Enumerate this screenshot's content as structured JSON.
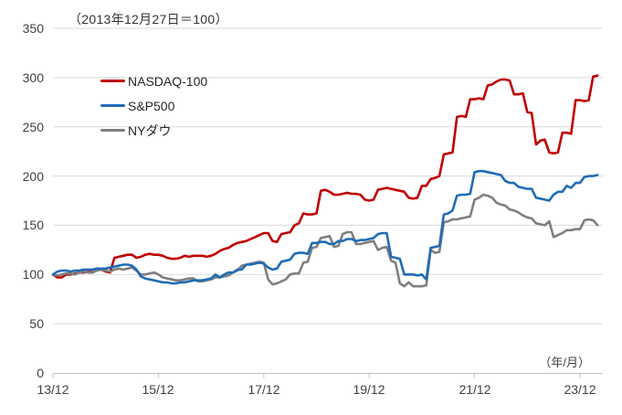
{
  "chart_data": {
    "type": "line",
    "title": "（2013年12月27日＝100）",
    "baseline_note": "2013-12-27 = 100",
    "x_axis": {
      "label": "（年/月）",
      "tick_labels": [
        "13/12",
        "15/12",
        "17/12",
        "19/12",
        "21/12",
        "23/12"
      ],
      "tick_months": [
        0,
        24,
        48,
        72,
        96,
        120
      ],
      "unit": "monthly points, month 0 = 2013/12"
    },
    "y_axis": {
      "tick_labels": [
        "0",
        "50",
        "100",
        "150",
        "200",
        "250",
        "300",
        "350"
      ],
      "ticks": [
        0,
        50,
        100,
        150,
        200,
        250,
        300,
        350
      ],
      "range": [
        0,
        350
      ],
      "grid": true
    },
    "legend_position": "top-left-inside",
    "series": [
      {
        "name": "NASDAQ-100",
        "color": "#c00000",
        "values": [
          100,
          97,
          97,
          100,
          100,
          101,
          102,
          102,
          103,
          105,
          105,
          105,
          103,
          102,
          117,
          118,
          119,
          120,
          120,
          117,
          118,
          120,
          121,
          120,
          120,
          119,
          117,
          116,
          116,
          117,
          119,
          118,
          119,
          119,
          119,
          118,
          119,
          121,
          124,
          126,
          127,
          130,
          132,
          133,
          134,
          136,
          138,
          140,
          142,
          142,
          134,
          133,
          141,
          142,
          143,
          150,
          152,
          162,
          161,
          161,
          162,
          185,
          186,
          184,
          181,
          181,
          182,
          183,
          182,
          182,
          181,
          176,
          175,
          176,
          186,
          187,
          188,
          187,
          186,
          185,
          184,
          178,
          177,
          178,
          190,
          190,
          197,
          198,
          200,
          222,
          223,
          224,
          260,
          261,
          260,
          278,
          278,
          279,
          278,
          292,
          293,
          296,
          298,
          298,
          297,
          283,
          283,
          284,
          265,
          264,
          232,
          236,
          237,
          224,
          223,
          224,
          244,
          244,
          243,
          277,
          277,
          276,
          277,
          301,
          302
        ]
      },
      {
        "name": "S&P500",
        "color": "#1f6cb5",
        "values": [
          100,
          103,
          104,
          104,
          103,
          104,
          104,
          105,
          105,
          105,
          106,
          106,
          106,
          107,
          108,
          109,
          110,
          110,
          109,
          105,
          98,
          96,
          95,
          94,
          93,
          92,
          92,
          91,
          91,
          92,
          92,
          93,
          94,
          94,
          94,
          95,
          96,
          100,
          97,
          100,
          102,
          102,
          105,
          105,
          110,
          110,
          111,
          112,
          111,
          107,
          105,
          106,
          113,
          114,
          115,
          121,
          122,
          122,
          121,
          132,
          132,
          133,
          133,
          131,
          131,
          134,
          134,
          136,
          136,
          134,
          135,
          135,
          136,
          137,
          141,
          142,
          142,
          118,
          117,
          116,
          100,
          100,
          100,
          99,
          100,
          95,
          127,
          128,
          129,
          161,
          162,
          165,
          180,
          181,
          181,
          182,
          204,
          205,
          205,
          204,
          203,
          202,
          201,
          195,
          193,
          193,
          189,
          188,
          187,
          187,
          178,
          177,
          176,
          175,
          181,
          184,
          184,
          190,
          188,
          193,
          193,
          199,
          200,
          200,
          201
        ]
      },
      {
        "name": "NYダウ",
        "color": "#7f7f7f",
        "values": [
          100,
          99,
          100,
          101,
          101,
          100,
          102,
          103,
          102,
          102,
          104,
          105,
          104,
          103,
          105,
          106,
          105,
          106,
          107,
          104,
          100,
          100,
          101,
          102,
          100,
          97,
          96,
          95,
          94,
          94,
          95,
          96,
          96,
          93,
          93,
          94,
          95,
          97,
          97,
          98,
          99,
          102,
          104,
          109,
          110,
          111,
          112,
          113,
          112,
          95,
          90,
          91,
          93,
          95,
          100,
          101,
          101,
          112,
          113,
          127,
          128,
          137,
          138,
          139,
          128,
          129,
          141,
          143,
          143,
          131,
          131,
          132,
          133,
          134,
          125,
          127,
          128,
          114,
          112,
          91,
          88,
          92,
          88,
          88,
          88,
          89,
          125,
          122,
          123,
          153,
          154,
          156,
          156,
          157,
          158,
          159,
          176,
          178,
          181,
          180,
          178,
          173,
          171,
          170,
          166,
          165,
          163,
          160,
          158,
          157,
          152,
          151,
          150,
          154,
          138,
          140,
          142,
          145,
          145,
          146,
          146,
          155,
          156,
          155,
          150
        ]
      }
    ],
    "style": {
      "background": "#ffffff",
      "gridline_color": "#d9d9d9",
      "axis_color": "#bfbfbf",
      "text_color": "#404040",
      "line_width": 2.6
    }
  }
}
